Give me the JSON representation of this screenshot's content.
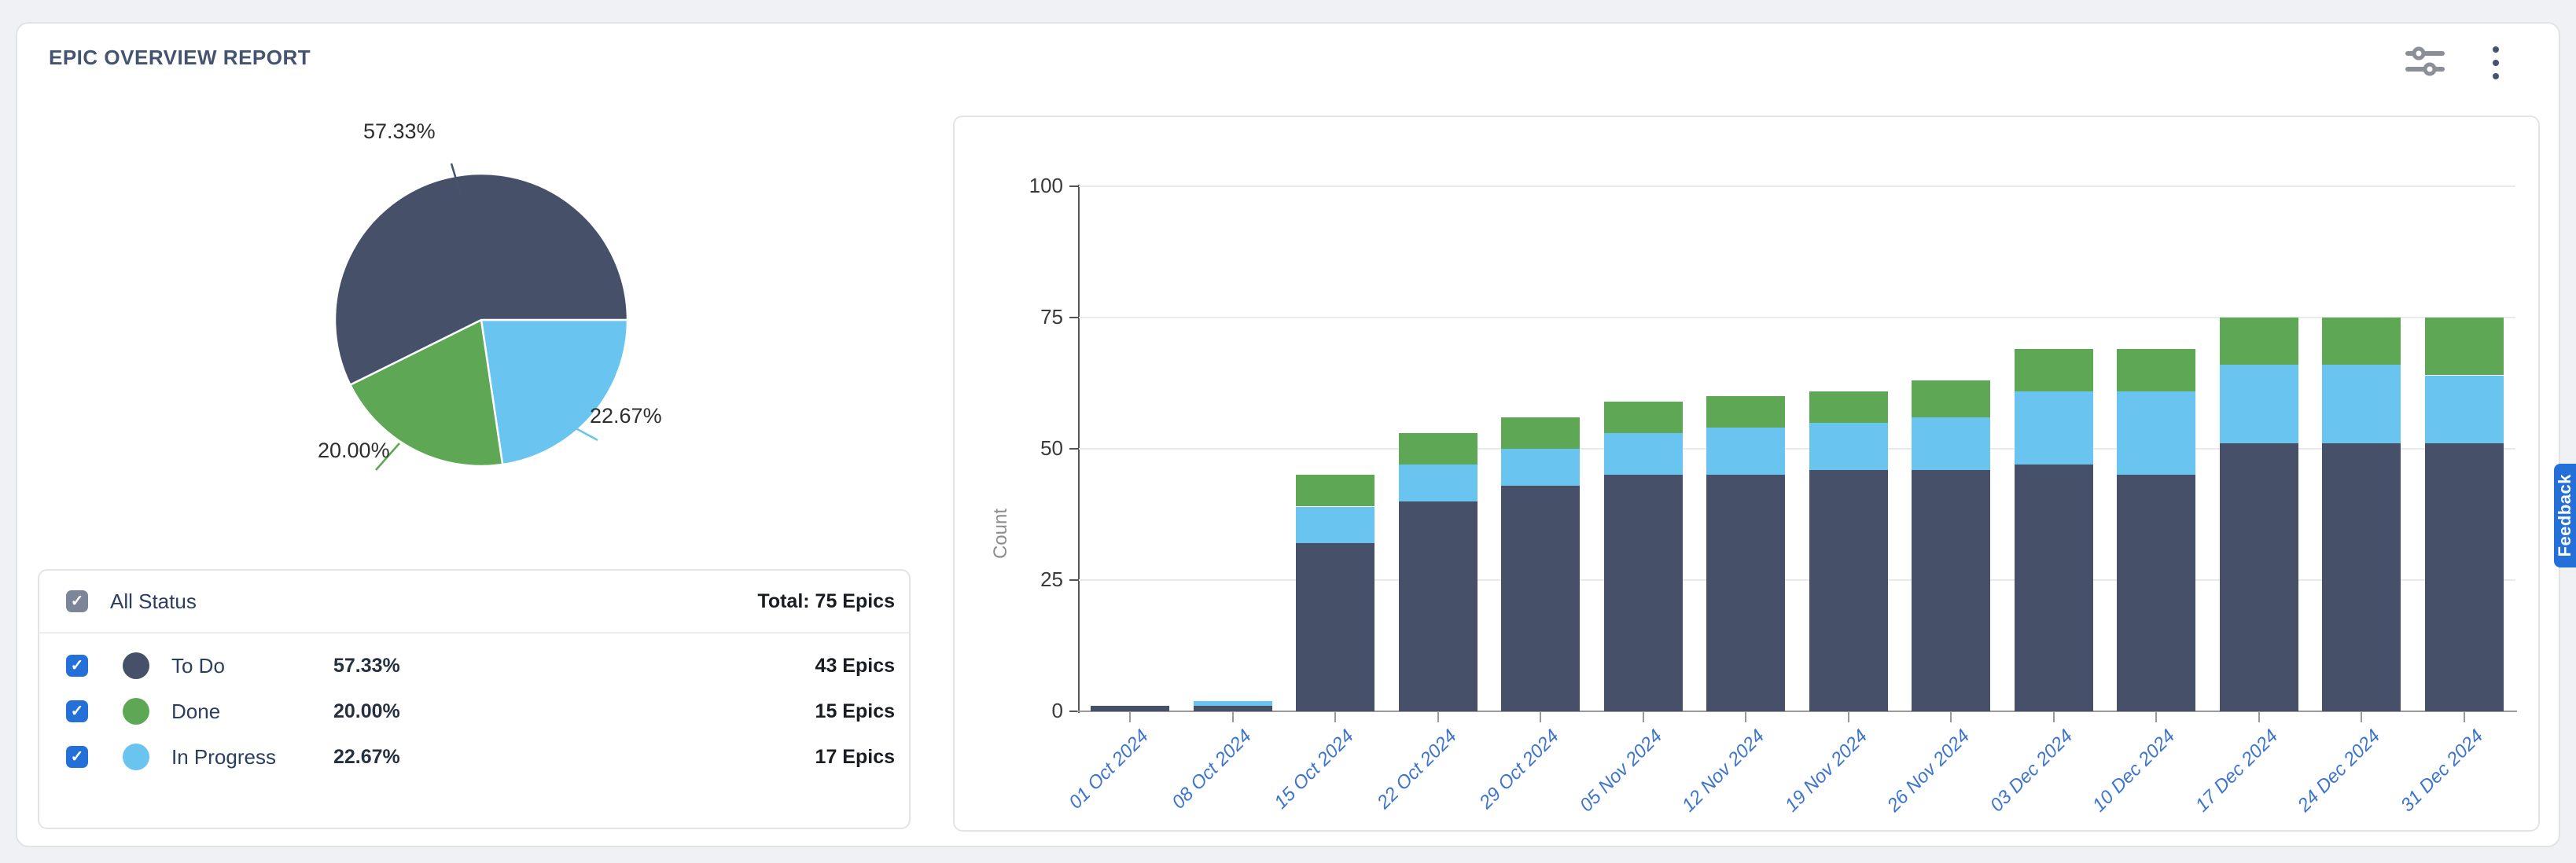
{
  "report": {
    "title": "EPIC OVERVIEW REPORT"
  },
  "toolbar": {
    "filter_icon": "sliders-icon",
    "menu_icon": "kebab-menu-icon"
  },
  "feedback_tab": {
    "label": "Feedback"
  },
  "colors": {
    "todo": "#475069",
    "in_progress": "#69C4EF",
    "done": "#5EA855",
    "accent_blue": "#2570d8",
    "axis_label_blue": "#3d74cf"
  },
  "legend": {
    "all_label": "All Status",
    "total_label": "Total: 75 Epics",
    "rows": [
      {
        "label": "To Do",
        "percent": "57.33%",
        "count": "43 Epics",
        "color_key": "todo"
      },
      {
        "label": "Done",
        "percent": "20.00%",
        "count": "15 Epics",
        "color_key": "done"
      },
      {
        "label": "In Progress",
        "percent": "22.67%",
        "count": "17 Epics",
        "color_key": "in_progress"
      }
    ]
  },
  "chart_data": [
    {
      "type": "pie",
      "start_angle": "east-clockwise",
      "slices": [
        {
          "name": "In Progress",
          "pct": 22.67,
          "label": "22.67%",
          "color_key": "in_progress"
        },
        {
          "name": "Done",
          "pct": 20.0,
          "label": "20.00%",
          "color_key": "done"
        },
        {
          "name": "To Do",
          "pct": 57.33,
          "label": "57.33%",
          "color_key": "todo"
        }
      ]
    },
    {
      "type": "bar",
      "stacked": true,
      "categories": [
        "01 Oct 2024",
        "08 Oct 2024",
        "15 Oct 2024",
        "22 Oct 2024",
        "29 Oct 2024",
        "05 Nov 2024",
        "12 Nov 2024",
        "19 Nov 2024",
        "26 Nov 2024",
        "03 Dec 2024",
        "10 Dec 2024",
        "17 Dec 2024",
        "24 Dec 2024",
        "31 Dec 2024"
      ],
      "series": [
        {
          "name": "To Do",
          "color_key": "todo",
          "values": [
            1,
            1,
            32,
            40,
            43,
            45,
            45,
            46,
            46,
            47,
            45,
            51,
            51,
            51
          ]
        },
        {
          "name": "In Progress",
          "color_key": "in_progress",
          "values": [
            0,
            1,
            7,
            7,
            7,
            8,
            9,
            9,
            10,
            14,
            16,
            15,
            15,
            13
          ]
        },
        {
          "name": "Done",
          "color_key": "done",
          "values": [
            0,
            0,
            6,
            6,
            6,
            6,
            6,
            6,
            7,
            8,
            8,
            9,
            9,
            11
          ]
        }
      ],
      "ylabel": "Count",
      "ylim": [
        0,
        100
      ],
      "yticks": [
        0,
        25,
        50,
        75,
        100
      ],
      "grid": true,
      "legend_position": "none"
    }
  ]
}
